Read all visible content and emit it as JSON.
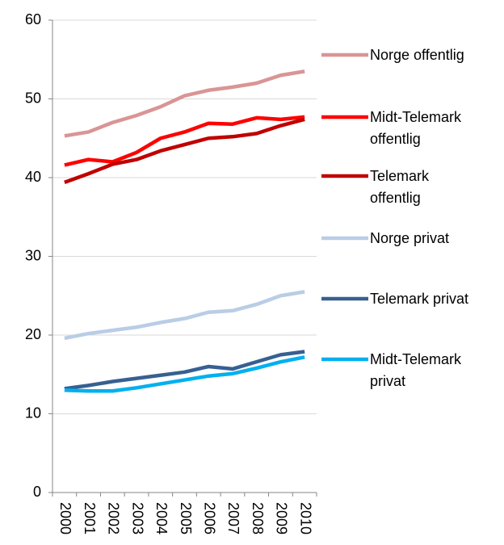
{
  "chart_data": {
    "type": "line",
    "categories": [
      "2000",
      "2001",
      "2002",
      "2003",
      "2004",
      "2005",
      "2006",
      "2007",
      "2008",
      "2009",
      "2010"
    ],
    "series": [
      {
        "name": "Norge offentlig",
        "color": "#d99594",
        "values": [
          45.3,
          45.8,
          47.0,
          47.9,
          49.0,
          50.4,
          51.1,
          51.5,
          52.0,
          53.0,
          53.5
        ]
      },
      {
        "name": "Midt-Telemark offentlig",
        "color": "#ff0000",
        "values": [
          41.6,
          42.3,
          42.0,
          43.2,
          45.0,
          45.8,
          46.9,
          46.8,
          47.6,
          47.4,
          47.7
        ]
      },
      {
        "name": "Telemark offentlig",
        "color": "#c00000",
        "values": [
          39.4,
          40.5,
          41.7,
          42.3,
          43.4,
          44.2,
          45.0,
          45.2,
          45.6,
          46.6,
          47.4
        ]
      },
      {
        "name": "Norge privat",
        "color": "#b9cde5",
        "values": [
          19.6,
          20.2,
          20.6,
          21.0,
          21.6,
          22.1,
          22.9,
          23.1,
          23.9,
          25.0,
          25.5
        ]
      },
      {
        "name": "Telemark privat",
        "color": "#376092",
        "values": [
          13.2,
          13.6,
          14.1,
          14.5,
          14.9,
          15.3,
          16.0,
          15.7,
          16.6,
          17.5,
          17.9
        ]
      },
      {
        "name": "Midt-Telemark privat",
        "color": "#00b0f0",
        "values": [
          13.0,
          12.9,
          12.9,
          13.3,
          13.8,
          14.3,
          14.8,
          15.1,
          15.8,
          16.6,
          17.2
        ]
      }
    ],
    "ylim": [
      0,
      60
    ],
    "yticks": [
      0,
      10,
      20,
      30,
      40,
      50,
      60
    ],
    "grid": true,
    "legend": "right"
  }
}
